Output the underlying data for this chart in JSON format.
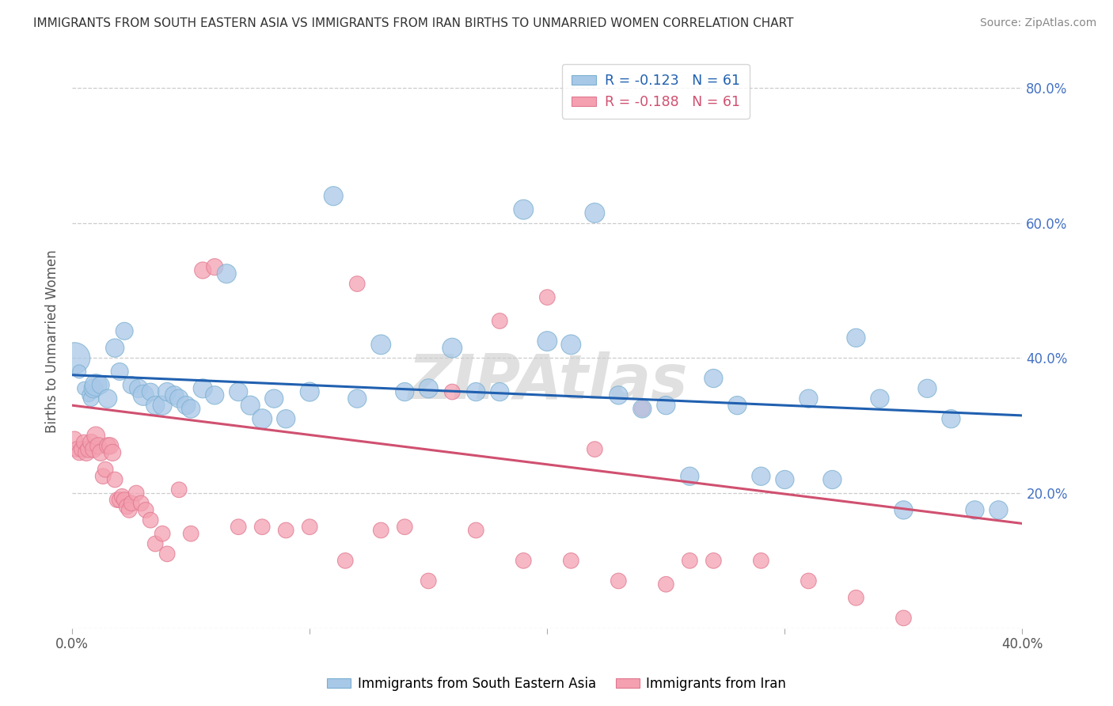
{
  "title": "IMMIGRANTS FROM SOUTH EASTERN ASIA VS IMMIGRANTS FROM IRAN BIRTHS TO UNMARRIED WOMEN CORRELATION CHART",
  "source": "Source: ZipAtlas.com",
  "ylabel": "Births to Unmarried Women",
  "xmin": 0.0,
  "xmax": 0.4,
  "ymin": 0.0,
  "ymax": 0.85,
  "ytick_positions": [
    0.0,
    0.2,
    0.4,
    0.6,
    0.8
  ],
  "ytick_labels": [
    "",
    "20.0%",
    "40.0%",
    "60.0%",
    "80.0%"
  ],
  "xtick_positions": [
    0.0,
    0.1,
    0.2,
    0.3,
    0.4
  ],
  "xtick_labels": [
    "0.0%",
    "",
    "",
    "",
    "40.0%"
  ],
  "blue_color": "#a8c8e8",
  "pink_color": "#f4a0b0",
  "blue_edge_color": "#7aafd0",
  "pink_edge_color": "#e07890",
  "blue_line_color": "#2060b0",
  "pink_line_color": "#d05070",
  "R_blue": -0.123,
  "N_blue": 61,
  "R_pink": -0.188,
  "N_pink": 61,
  "legend_label_blue": "Immigrants from South Eastern Asia",
  "legend_label_pink": "Immigrants from Iran",
  "blue_line_x": [
    0.0,
    0.4
  ],
  "blue_line_y": [
    0.375,
    0.315
  ],
  "pink_line_x": [
    0.0,
    0.4
  ],
  "pink_line_y": [
    0.33,
    0.155
  ],
  "blue_scatter_x": [
    0.001,
    0.003,
    0.005,
    0.007,
    0.008,
    0.009,
    0.01,
    0.012,
    0.015,
    0.018,
    0.02,
    0.022,
    0.025,
    0.028,
    0.03,
    0.033,
    0.035,
    0.038,
    0.04,
    0.043,
    0.045,
    0.048,
    0.05,
    0.055,
    0.06,
    0.065,
    0.07,
    0.075,
    0.08,
    0.085,
    0.09,
    0.1,
    0.11,
    0.12,
    0.13,
    0.14,
    0.15,
    0.16,
    0.17,
    0.18,
    0.19,
    0.2,
    0.21,
    0.22,
    0.23,
    0.24,
    0.25,
    0.26,
    0.27,
    0.28,
    0.29,
    0.3,
    0.31,
    0.32,
    0.33,
    0.34,
    0.35,
    0.36,
    0.37,
    0.38,
    0.39
  ],
  "blue_scatter_y": [
    0.4,
    0.38,
    0.355,
    0.345,
    0.34,
    0.355,
    0.36,
    0.36,
    0.34,
    0.415,
    0.38,
    0.44,
    0.36,
    0.355,
    0.345,
    0.35,
    0.33,
    0.33,
    0.35,
    0.345,
    0.34,
    0.33,
    0.325,
    0.355,
    0.345,
    0.525,
    0.35,
    0.33,
    0.31,
    0.34,
    0.31,
    0.35,
    0.64,
    0.34,
    0.42,
    0.35,
    0.355,
    0.415,
    0.35,
    0.35,
    0.62,
    0.425,
    0.42,
    0.615,
    0.345,
    0.325,
    0.33,
    0.225,
    0.37,
    0.33,
    0.225,
    0.22,
    0.34,
    0.22,
    0.43,
    0.34,
    0.175,
    0.355,
    0.31,
    0.175,
    0.175
  ],
  "blue_scatter_sizes": [
    800,
    150,
    150,
    150,
    200,
    300,
    400,
    250,
    280,
    280,
    250,
    250,
    250,
    280,
    350,
    250,
    280,
    300,
    280,
    280,
    280,
    280,
    280,
    300,
    280,
    300,
    280,
    300,
    320,
    280,
    280,
    300,
    300,
    280,
    320,
    280,
    300,
    320,
    280,
    280,
    320,
    320,
    320,
    320,
    280,
    280,
    280,
    280,
    280,
    280,
    280,
    280,
    280,
    280,
    280,
    280,
    280,
    280,
    280,
    280,
    280
  ],
  "pink_scatter_x": [
    0.001,
    0.002,
    0.003,
    0.004,
    0.005,
    0.006,
    0.007,
    0.008,
    0.009,
    0.01,
    0.011,
    0.012,
    0.013,
    0.014,
    0.015,
    0.016,
    0.017,
    0.018,
    0.019,
    0.02,
    0.021,
    0.022,
    0.023,
    0.024,
    0.025,
    0.027,
    0.029,
    0.031,
    0.033,
    0.035,
    0.038,
    0.04,
    0.045,
    0.05,
    0.055,
    0.06,
    0.07,
    0.08,
    0.09,
    0.1,
    0.115,
    0.13,
    0.15,
    0.17,
    0.19,
    0.21,
    0.23,
    0.25,
    0.27,
    0.29,
    0.31,
    0.33,
    0.35,
    0.12,
    0.14,
    0.16,
    0.18,
    0.2,
    0.22,
    0.24,
    0.26
  ],
  "pink_scatter_y": [
    0.28,
    0.265,
    0.26,
    0.265,
    0.275,
    0.26,
    0.265,
    0.275,
    0.265,
    0.285,
    0.27,
    0.26,
    0.225,
    0.235,
    0.27,
    0.27,
    0.26,
    0.22,
    0.19,
    0.19,
    0.195,
    0.19,
    0.18,
    0.175,
    0.185,
    0.2,
    0.185,
    0.175,
    0.16,
    0.125,
    0.14,
    0.11,
    0.205,
    0.14,
    0.53,
    0.535,
    0.15,
    0.15,
    0.145,
    0.15,
    0.1,
    0.145,
    0.07,
    0.145,
    0.1,
    0.1,
    0.07,
    0.065,
    0.1,
    0.1,
    0.07,
    0.045,
    0.015,
    0.51,
    0.15,
    0.35,
    0.455,
    0.49,
    0.265,
    0.325,
    0.1
  ],
  "pink_scatter_sizes": [
    200,
    200,
    200,
    200,
    200,
    230,
    230,
    230,
    230,
    270,
    230,
    230,
    200,
    200,
    230,
    230,
    230,
    200,
    200,
    200,
    200,
    200,
    200,
    200,
    200,
    200,
    200,
    200,
    200,
    200,
    200,
    200,
    200,
    200,
    230,
    230,
    200,
    200,
    200,
    200,
    200,
    200,
    200,
    200,
    200,
    200,
    200,
    200,
    200,
    200,
    200,
    200,
    200,
    200,
    200,
    200,
    200,
    200,
    200,
    200,
    200
  ]
}
